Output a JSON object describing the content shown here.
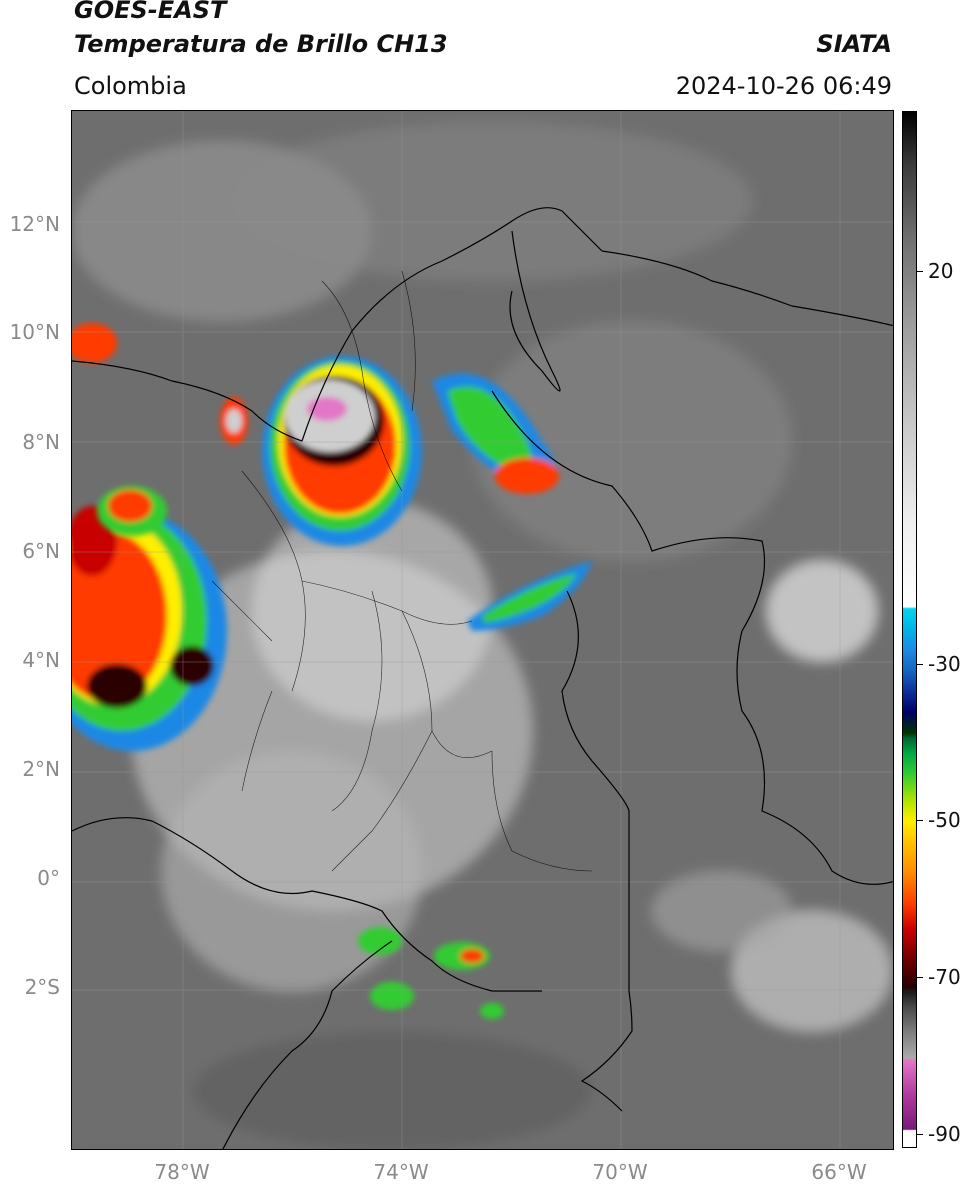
{
  "header": {
    "satellite": "GOES-EAST",
    "product": "Temperatura de Brillo CH13",
    "region": "Colombia",
    "organization": "SIATA",
    "timestamp": "2024-10-26 06:49"
  },
  "map": {
    "latitude_labels": [
      "12°N",
      "10°N",
      "8°N",
      "6°N",
      "4°N",
      "2°N",
      "0°",
      "2°S"
    ],
    "longitude_labels": [
      "78°W",
      "74°W",
      "70°W",
      "66°W"
    ],
    "extent": {
      "west": "80°W",
      "east": "65°W",
      "north": "14°N",
      "south": "5°S"
    }
  },
  "colorbar": {
    "tick_labels": [
      "20",
      "-30",
      "-50",
      "-70",
      "-90"
    ],
    "colors": {
      "warm": "#6d6d6d",
      "white": "#ffffff",
      "cyan": "#00d5ee",
      "blue": "#0d2f9a",
      "green": "#33cc33",
      "yellow": "#ffee00",
      "orange": "#ff8c00",
      "red": "#c80000",
      "black": "#1a1a1a",
      "magenta": "#e277c7",
      "purple": "#7a1a78"
    }
  }
}
